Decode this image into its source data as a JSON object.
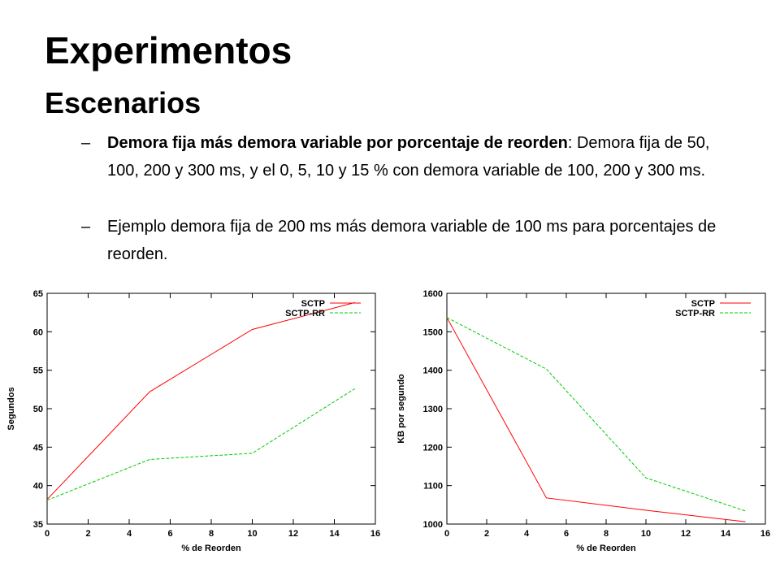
{
  "slide": {
    "title": "Experimentos",
    "subtitle": "Escenarios",
    "bullet_marker": "–",
    "bullet1": {
      "bold": "Demora fija más demora variable por porcentaje de reorden",
      "rest": ": Demora fija de 50, 100, 200 y 300 ms, y el 0, 5, 10 y 15 % con demora variable de 100, 200 y 300 ms."
    },
    "bullet2": "Ejemplo demora fija de 200 ms más demora variable de 100 ms para porcentajes de reorden."
  },
  "chart_data": [
    {
      "type": "line",
      "title": "",
      "xlabel": "% de Reorden",
      "ylabel": "Segundos",
      "xlim": [
        0,
        16
      ],
      "ylim": [
        35,
        65
      ],
      "xticks": [
        0,
        2,
        4,
        6,
        8,
        10,
        12,
        14,
        16
      ],
      "yticks": [
        35,
        40,
        45,
        50,
        55,
        60,
        65
      ],
      "grid": false,
      "legend": "top-right",
      "series": [
        {
          "name": "SCTP",
          "color": "#ff0000",
          "dash": "solid",
          "x": [
            0,
            5,
            10,
            15
          ],
          "y": [
            38.2,
            52.2,
            60.3,
            63.8
          ]
        },
        {
          "name": "SCTP-RR",
          "color": "#00cc00",
          "dash": "dashed",
          "x": [
            0,
            5,
            10,
            15
          ],
          "y": [
            38.1,
            43.4,
            44.2,
            52.6
          ]
        }
      ]
    },
    {
      "type": "line",
      "title": "",
      "xlabel": "% de Reorden",
      "ylabel": "KB por segundo",
      "xlim": [
        0,
        16
      ],
      "ylim": [
        1000,
        1600
      ],
      "xticks": [
        0,
        2,
        4,
        6,
        8,
        10,
        12,
        14,
        16
      ],
      "yticks": [
        1000,
        1100,
        1200,
        1300,
        1400,
        1500,
        1600
      ],
      "grid": false,
      "legend": "top-right",
      "series": [
        {
          "name": "SCTP",
          "color": "#ff0000",
          "dash": "solid",
          "x": [
            0,
            5,
            10,
            15
          ],
          "y": [
            1537,
            1068,
            1036,
            1006
          ]
        },
        {
          "name": "SCTP-RR",
          "color": "#00cc00",
          "dash": "dashed",
          "x": [
            0,
            5,
            10,
            15
          ],
          "y": [
            1537,
            1403,
            1120,
            1034
          ]
        }
      ]
    }
  ]
}
